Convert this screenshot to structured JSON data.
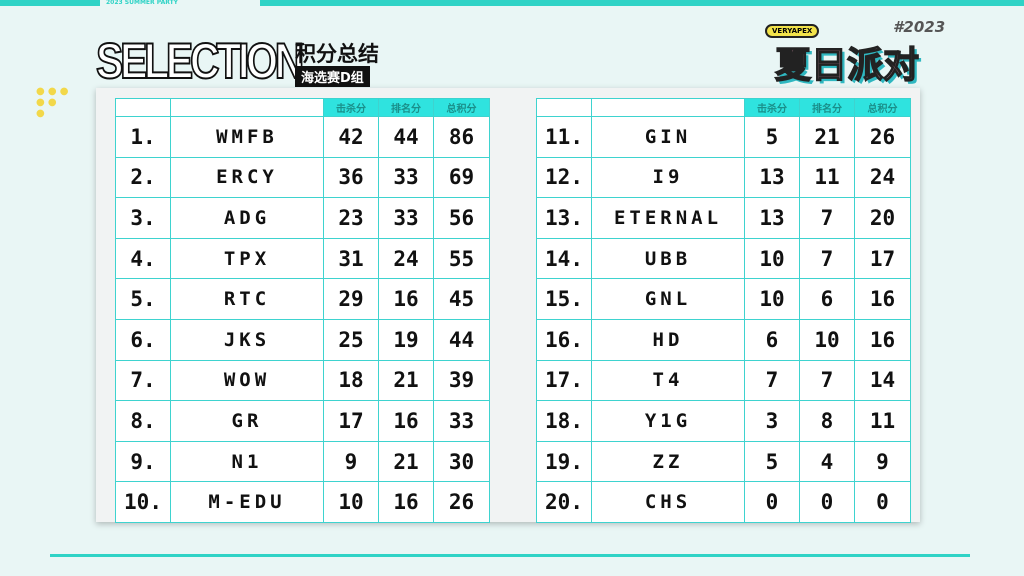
{
  "header": {
    "top_label": "2023 SUMMER PARTY",
    "title": "SELECTION",
    "subtitle": "积分总结",
    "group": "海选赛D组"
  },
  "logo": {
    "brand": "VERYAPEX",
    "main": "夏日派对",
    "year": "#2023"
  },
  "columns": [
    "击杀分",
    "排名分",
    "总积分"
  ],
  "left": [
    {
      "rank": "1.",
      "team": "WMFB",
      "kill": "42",
      "place": "44",
      "total": "86"
    },
    {
      "rank": "2.",
      "team": "ERCY",
      "kill": "36",
      "place": "33",
      "total": "69"
    },
    {
      "rank": "3.",
      "team": "ADG",
      "kill": "23",
      "place": "33",
      "total": "56"
    },
    {
      "rank": "4.",
      "team": "TPX",
      "kill": "31",
      "place": "24",
      "total": "55"
    },
    {
      "rank": "5.",
      "team": "RTC",
      "kill": "29",
      "place": "16",
      "total": "45"
    },
    {
      "rank": "6.",
      "team": "JKS",
      "kill": "25",
      "place": "19",
      "total": "44"
    },
    {
      "rank": "7.",
      "team": "WOW",
      "kill": "18",
      "place": "21",
      "total": "39"
    },
    {
      "rank": "8.",
      "team": "GR",
      "kill": "17",
      "place": "16",
      "total": "33"
    },
    {
      "rank": "9.",
      "team": "N1",
      "kill": "9",
      "place": "21",
      "total": "30"
    },
    {
      "rank": "10.",
      "team": "M-EDU",
      "kill": "10",
      "place": "16",
      "total": "26"
    }
  ],
  "right": [
    {
      "rank": "11.",
      "team": "GIN",
      "kill": "5",
      "place": "21",
      "total": "26"
    },
    {
      "rank": "12.",
      "team": "I9",
      "kill": "13",
      "place": "11",
      "total": "24"
    },
    {
      "rank": "13.",
      "team": "ETERNAL",
      "kill": "13",
      "place": "7",
      "total": "20"
    },
    {
      "rank": "14.",
      "team": "UBB",
      "kill": "10",
      "place": "7",
      "total": "17"
    },
    {
      "rank": "15.",
      "team": "GNL",
      "kill": "10",
      "place": "6",
      "total": "16"
    },
    {
      "rank": "16.",
      "team": "HD",
      "kill": "6",
      "place": "10",
      "total": "16"
    },
    {
      "rank": "17.",
      "team": "T4",
      "kill": "7",
      "place": "7",
      "total": "14"
    },
    {
      "rank": "18.",
      "team": "Y1G",
      "kill": "3",
      "place": "8",
      "total": "11"
    },
    {
      "rank": "19.",
      "team": "ZZ",
      "kill": "5",
      "place": "4",
      "total": "9"
    },
    {
      "rank": "20.",
      "team": "CHS",
      "kill": "0",
      "place": "0",
      "total": "0"
    }
  ],
  "colors": {
    "accent": "#2fd3c6",
    "header_cell": "#2fe3df",
    "border": "#3ed3cf"
  }
}
